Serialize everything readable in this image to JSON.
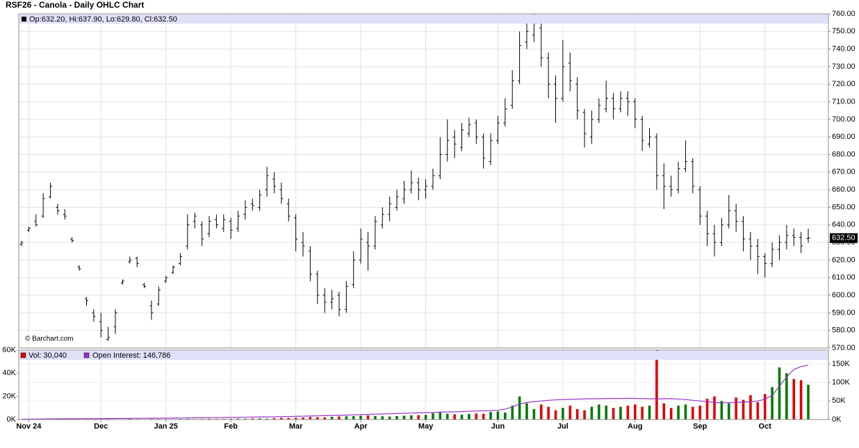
{
  "chart_data": [
    {
      "type": "ohlc",
      "title": "RSF26 - Canola - Daily OHLC Chart",
      "legend_text": "Op:632.20, Hi:637.90, Lo:629.80, Cl:632.50",
      "watermark": "© Barchart.com",
      "last_price_label": "632.50",
      "color": "#000000",
      "grid": true,
      "ylim": [
        570,
        760
      ],
      "yticks": [
        {
          "value": 570,
          "label": "570.00"
        },
        {
          "value": 580,
          "label": "580.00"
        },
        {
          "value": 590,
          "label": "590.00"
        },
        {
          "value": 600,
          "label": "600.00"
        },
        {
          "value": 610,
          "label": "610.00"
        },
        {
          "value": 620,
          "label": "620.00"
        },
        {
          "value": 630,
          "label": "630.00"
        },
        {
          "value": 640,
          "label": "640.00"
        },
        {
          "value": 650,
          "label": "650.00"
        },
        {
          "value": 660,
          "label": "660.00"
        },
        {
          "value": 670,
          "label": "670.00"
        },
        {
          "value": 680,
          "label": "680.00"
        },
        {
          "value": 690,
          "label": "690.00"
        },
        {
          "value": 700,
          "label": "700.00"
        },
        {
          "value": 710,
          "label": "710.00"
        },
        {
          "value": 720,
          "label": "720.00"
        },
        {
          "value": 730,
          "label": "730.00"
        },
        {
          "value": 740,
          "label": "740.00"
        },
        {
          "value": 750,
          "label": "750.00"
        },
        {
          "value": 760,
          "label": "760.00"
        }
      ],
      "open": [
        629,
        637,
        642,
        645,
        656,
        650,
        646,
        632,
        616,
        598,
        590,
        585,
        575,
        582,
        607,
        619,
        621,
        606,
        594,
        595,
        608,
        613,
        618,
        628,
        642,
        640,
        635,
        643,
        638,
        642,
        638,
        646,
        652,
        650,
        660,
        666,
        660,
        652,
        644,
        630,
        625,
        612,
        600,
        596,
        600,
        592,
        606,
        620,
        630,
        628,
        640,
        646,
        650,
        655,
        660,
        664,
        660,
        662,
        668,
        680,
        690,
        684,
        692,
        698,
        690,
        676,
        688,
        698,
        708,
        722,
        744,
        748,
        752,
        735,
        720,
        712,
        732,
        720,
        704,
        690,
        700,
        706,
        712,
        706,
        712,
        710,
        700,
        686,
        690,
        668,
        662,
        660,
        672,
        676,
        660,
        645,
        635,
        630,
        640,
        648,
        642,
        632,
        628,
        622,
        618,
        626,
        630,
        634,
        633,
        632.2
      ],
      "high": [
        631,
        639,
        646,
        658,
        664,
        652,
        649,
        633,
        617,
        599,
        592,
        590,
        582,
        592,
        609,
        622,
        622,
        607,
        597,
        605,
        611,
        617,
        624,
        646,
        647,
        642,
        645,
        646,
        646,
        644,
        648,
        654,
        655,
        660,
        673,
        670,
        664,
        655,
        646,
        636,
        628,
        614,
        604,
        603,
        602,
        608,
        625,
        638,
        636,
        645,
        650,
        656,
        660,
        665,
        671,
        667,
        666,
        672,
        690,
        700,
        694,
        698,
        701,
        700,
        692,
        692,
        702,
        712,
        728,
        750,
        758,
        760,
        756,
        738,
        725,
        745,
        738,
        724,
        706,
        705,
        712,
        722,
        715,
        716,
        716,
        712,
        702,
        695,
        692,
        675,
        668,
        676,
        688,
        678,
        662,
        648,
        640,
        644,
        657,
        652,
        645,
        636,
        632,
        624,
        630,
        634,
        640,
        638,
        636,
        637.9
      ],
      "low": [
        628,
        636,
        639,
        644,
        655,
        646,
        643,
        630,
        614,
        594,
        585,
        576,
        574,
        578,
        606,
        618,
        616,
        604,
        586,
        594,
        607,
        612,
        617,
        626,
        638,
        628,
        633,
        638,
        636,
        632,
        636,
        643,
        648,
        648,
        656,
        658,
        652,
        642,
        625,
        622,
        608,
        595,
        590,
        592,
        588,
        590,
        604,
        618,
        614,
        626,
        638,
        642,
        648,
        652,
        658,
        654,
        655,
        660,
        666,
        676,
        678,
        682,
        690,
        686,
        672,
        674,
        686,
        696,
        706,
        720,
        740,
        744,
        730,
        712,
        698,
        710,
        716,
        700,
        684,
        686,
        698,
        704,
        700,
        704,
        702,
        695,
        682,
        684,
        660,
        649,
        656,
        658,
        670,
        658,
        640,
        628,
        622,
        628,
        638,
        636,
        625,
        620,
        612,
        610,
        616,
        620,
        626,
        628,
        624,
        629.8
      ],
      "close": [
        630,
        638,
        640,
        655,
        662,
        648,
        645,
        631,
        615,
        597,
        588,
        580,
        576,
        590,
        608,
        620,
        618,
        605,
        590,
        603,
        610,
        616,
        622,
        640,
        645,
        632,
        642,
        640,
        643,
        637,
        645,
        650,
        651,
        657,
        668,
        662,
        655,
        645,
        632,
        628,
        612,
        600,
        596,
        598,
        592,
        605,
        620,
        632,
        628,
        642,
        646,
        652,
        656,
        660,
        664,
        660,
        662,
        668,
        680,
        688,
        686,
        694,
        697,
        690,
        678,
        688,
        698,
        706,
        722,
        742,
        750,
        755,
        735,
        720,
        712,
        730,
        722,
        705,
        692,
        700,
        708,
        712,
        706,
        712,
        710,
        700,
        688,
        690,
        668,
        662,
        660,
        672,
        676,
        662,
        645,
        635,
        630,
        640,
        648,
        642,
        632,
        628,
        622,
        618,
        626,
        630,
        634,
        633,
        628,
        632.5
      ]
    },
    {
      "type": "volume",
      "categories": [
        null,
        "Nov 24",
        null,
        null,
        null,
        null,
        null,
        null,
        null,
        null,
        null,
        "Dec",
        null,
        null,
        null,
        null,
        null,
        null,
        null,
        null,
        "Jan 25",
        null,
        null,
        null,
        null,
        null,
        null,
        null,
        null,
        "Feb",
        null,
        null,
        null,
        null,
        null,
        null,
        null,
        null,
        "Mar",
        null,
        null,
        null,
        null,
        null,
        null,
        null,
        null,
        "Apr",
        null,
        null,
        null,
        null,
        null,
        null,
        null,
        null,
        "May",
        null,
        null,
        null,
        null,
        null,
        null,
        null,
        null,
        null,
        "Jun",
        null,
        null,
        null,
        null,
        null,
        null,
        null,
        null,
        "Jul",
        null,
        null,
        null,
        null,
        null,
        null,
        null,
        null,
        null,
        "Aug",
        null,
        null,
        null,
        null,
        null,
        null,
        null,
        null,
        "Sep",
        null,
        null,
        null,
        null,
        null,
        null,
        null,
        null,
        "Oct",
        null,
        null,
        null,
        null,
        null,
        null
      ],
      "up_color": "#007a00",
      "down_color": "#e00000",
      "grid": true,
      "ylim": [
        0,
        60000
      ],
      "yticks": [
        {
          "value": 0,
          "label": "0K"
        },
        {
          "value": 20000,
          "label": "20K"
        },
        {
          "value": 40000,
          "label": "40K"
        },
        {
          "value": 60000,
          "label": "60K"
        }
      ],
      "y2lim": [
        0,
        187500
      ],
      "y2ticks": [
        {
          "value": 0,
          "label": "0K"
        },
        {
          "value": 50000,
          "label": "50K"
        },
        {
          "value": 100000,
          "label": "100K"
        },
        {
          "value": 150000,
          "label": "150K"
        }
      ],
      "series": [
        {
          "name": "Vol: 30,040",
          "color": "#e00000",
          "values": [
            300,
            200,
            400,
            300,
            500,
            300,
            200,
            400,
            300,
            500,
            400,
            300,
            500,
            400,
            300,
            600,
            400,
            300,
            500,
            400,
            400,
            300,
            500,
            600,
            400,
            500,
            700,
            600,
            500,
            600,
            800,
            700,
            900,
            1000,
            800,
            1200,
            1500,
            1300,
            1500,
            1800,
            2200,
            2000,
            1900,
            2400,
            2600,
            2800,
            3000,
            3200,
            3500,
            3000,
            2800,
            2600,
            3000,
            3300,
            3600,
            3800,
            4000,
            5500,
            6000,
            5000,
            4500,
            4200,
            4800,
            5200,
            5000,
            6500,
            7000,
            6000,
            12000,
            20000,
            14000,
            9000,
            13000,
            11000,
            8000,
            10000,
            12000,
            9000,
            8000,
            11000,
            13000,
            12000,
            10000,
            11000,
            12000,
            13000,
            11000,
            12000,
            60000,
            14000,
            10000,
            12000,
            13000,
            11000,
            12000,
            18000,
            20000,
            16000,
            14000,
            19000,
            17000,
            21000,
            15000,
            22000,
            28000,
            45000,
            40000,
            35000,
            34000,
            30040
          ]
        },
        {
          "name": "Open Interest: 146,786",
          "color": "#9932cc",
          "axis": "y2",
          "values": [
            1000,
            1200,
            1400,
            1500,
            1700,
            1800,
            2000,
            2100,
            2300,
            2400,
            2500,
            2600,
            2700,
            2900,
            3000,
            3100,
            3300,
            3400,
            3500,
            3600,
            3800,
            4000,
            4200,
            4400,
            4600,
            4800,
            5000,
            5200,
            5400,
            5600,
            5900,
            6200,
            6500,
            6800,
            7100,
            7400,
            7800,
            8200,
            8600,
            9000,
            9500,
            10000,
            10500,
            11000,
            11500,
            12000,
            12600,
            13200,
            13800,
            14400,
            15000,
            15600,
            16200,
            16800,
            17400,
            18000,
            18600,
            19200,
            19800,
            20400,
            21000,
            21600,
            22200,
            22800,
            23400,
            24000,
            25000,
            28000,
            34000,
            42000,
            46000,
            48000,
            50000,
            52000,
            53000,
            54000,
            54500,
            55000,
            55500,
            56000,
            56000,
            56500,
            57000,
            57000,
            57500,
            57000,
            56500,
            56000,
            55500,
            56000,
            56500,
            55000,
            54000,
            52000,
            50000,
            48000,
            46000,
            45000,
            45500,
            46000,
            47000,
            48000,
            50000,
            55000,
            65000,
            90000,
            115000,
            135000,
            143000,
            146786
          ]
        }
      ]
    }
  ]
}
